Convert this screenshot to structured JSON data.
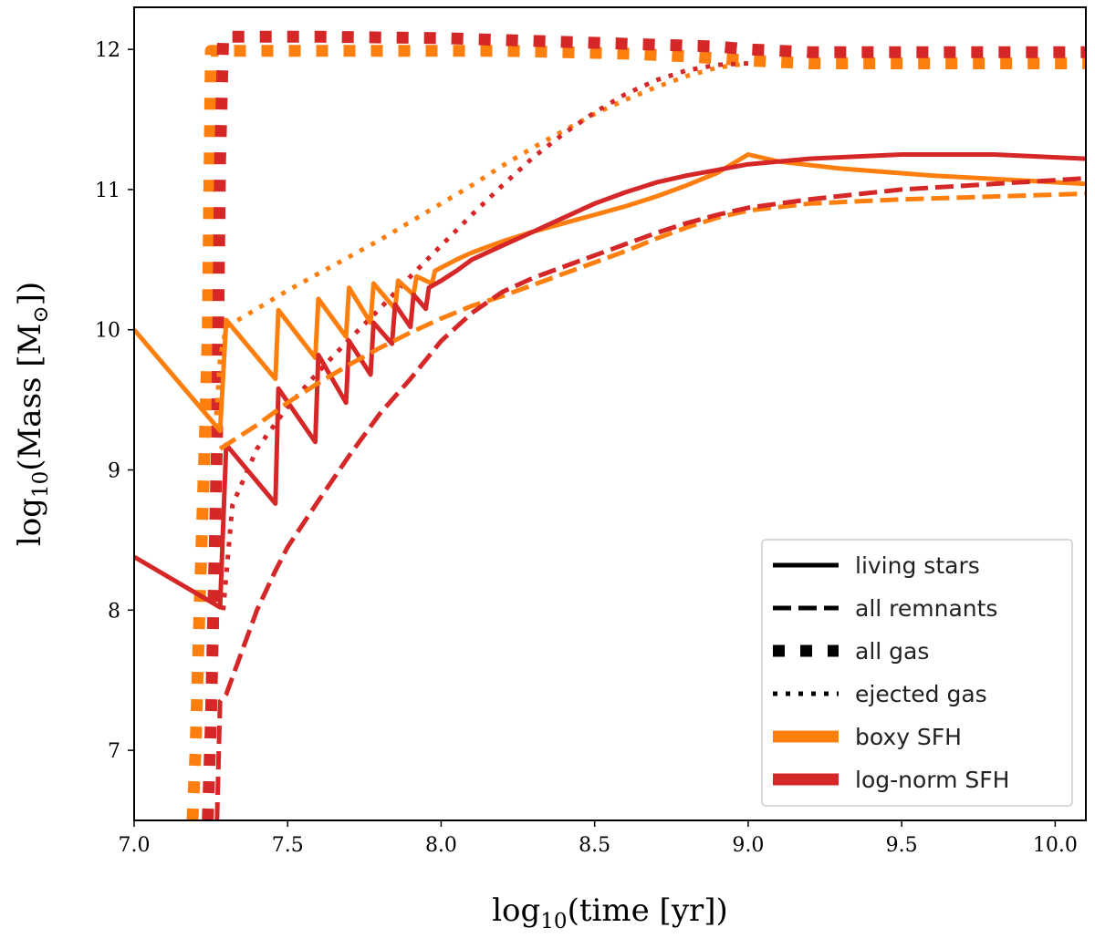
{
  "chart_data": {
    "type": "line",
    "title": "",
    "xlabel": {
      "prefix": "log",
      "sub": "10",
      "suffix": "(time [yr])"
    },
    "ylabel": {
      "prefix": "log",
      "sub": "10",
      "middle": "(Mass [M",
      "sub2": "⊙",
      "suffix": "])"
    },
    "xlim": [
      7.0,
      10.1
    ],
    "ylim": [
      6.5,
      12.3
    ],
    "xticks": [
      7.0,
      7.5,
      8.0,
      8.5,
      9.0,
      9.5,
      10.0
    ],
    "xtick_labels": [
      "7.0",
      "7.5",
      "8.0",
      "8.5",
      "9.0",
      "9.5",
      "10.0"
    ],
    "yticks": [
      7,
      8,
      9,
      10,
      11,
      12
    ],
    "ytick_labels": [
      "7",
      "8",
      "9",
      "10",
      "11",
      "12"
    ],
    "grid": false,
    "colors": {
      "boxy": "#ff7f0e",
      "lognorm": "#d62728",
      "axis": "#000000",
      "legend_key": "#000000"
    },
    "legend": {
      "position": "lower-right",
      "entries": [
        {
          "label": "living stars",
          "style": "solid"
        },
        {
          "label": "all remnants",
          "style": "dashed"
        },
        {
          "label": "all gas",
          "style": "square-dotted"
        },
        {
          "label": "ejected gas",
          "style": "dotted"
        },
        {
          "label": "boxy SFH",
          "style": "color-boxy"
        },
        {
          "label": "log-norm SFH",
          "style": "color-lognorm"
        }
      ]
    },
    "series": [
      {
        "name": "boxy SFH - all gas",
        "sfh": "boxy",
        "style": "square-dotted",
        "x": [
          7.19,
          7.2,
          7.21,
          7.22,
          7.23,
          7.24,
          7.245,
          7.25,
          7.3,
          7.6,
          7.9,
          8.2,
          8.4,
          8.6,
          8.8,
          9.0,
          9.2,
          9.5,
          10.1
        ],
        "y": [
          6.5,
          7.0,
          7.8,
          8.5,
          9.2,
          10.0,
          11.0,
          11.99,
          11.99,
          11.99,
          11.99,
          11.99,
          11.98,
          11.97,
          11.95,
          11.92,
          11.9,
          11.9,
          11.9
        ]
      },
      {
        "name": "log-norm SFH - all gas",
        "sfh": "lognorm",
        "style": "square-dotted",
        "x": [
          7.24,
          7.25,
          7.26,
          7.27,
          7.275,
          7.28,
          7.29,
          7.6,
          8.0,
          8.3,
          8.6,
          8.9,
          9.0,
          9.2,
          9.5,
          10.1
        ],
        "y": [
          6.5,
          7.2,
          8.2,
          9.2,
          10.2,
          11.2,
          12.09,
          12.09,
          12.08,
          12.06,
          12.04,
          12.02,
          12.0,
          11.98,
          11.98,
          11.98
        ]
      },
      {
        "name": "boxy SFH - ejected gas",
        "sfh": "boxy",
        "style": "dotted",
        "x": [
          7.265,
          7.28,
          7.3,
          7.4,
          7.5,
          7.6,
          7.7,
          7.8,
          7.9,
          8.0,
          8.1,
          8.2,
          8.3,
          8.4,
          8.5,
          8.6,
          8.7,
          8.8,
          8.9,
          9.0
        ],
        "y": [
          9.3,
          9.8,
          10.02,
          10.15,
          10.28,
          10.4,
          10.52,
          10.64,
          10.77,
          10.9,
          11.03,
          11.17,
          11.3,
          11.42,
          11.54,
          11.64,
          11.73,
          11.81,
          11.87,
          11.9
        ]
      },
      {
        "name": "log-norm SFH - ejected gas",
        "sfh": "lognorm",
        "style": "dotted",
        "x": [
          7.29,
          7.32,
          7.4,
          7.5,
          7.6,
          7.7,
          7.8,
          7.9,
          8.0,
          8.1,
          8.2,
          8.3,
          8.4,
          8.5,
          8.6,
          8.7,
          8.8,
          8.9,
          9.0
        ],
        "y": [
          8.0,
          8.75,
          9.15,
          9.45,
          9.7,
          9.93,
          10.15,
          10.38,
          10.6,
          10.82,
          11.03,
          11.23,
          11.4,
          11.55,
          11.68,
          11.78,
          11.85,
          11.89,
          11.9
        ]
      },
      {
        "name": "boxy SFH - living stars",
        "sfh": "boxy",
        "style": "solid",
        "x": [
          7.0,
          7.28,
          7.3,
          7.46,
          7.47,
          7.59,
          7.6,
          7.69,
          7.7,
          7.77,
          7.78,
          7.85,
          7.86,
          7.91,
          7.92,
          7.97,
          7.98,
          8.05,
          8.1,
          8.2,
          8.3,
          8.4,
          8.5,
          8.6,
          8.7,
          8.8,
          8.9,
          9.0,
          9.1,
          9.3,
          9.6,
          10.1
        ],
        "y": [
          10.0,
          9.28,
          10.07,
          9.65,
          10.14,
          9.8,
          10.22,
          9.95,
          10.3,
          10.05,
          10.33,
          10.15,
          10.35,
          10.25,
          10.38,
          10.33,
          10.42,
          10.5,
          10.55,
          10.63,
          10.7,
          10.76,
          10.82,
          10.88,
          10.95,
          11.03,
          11.12,
          11.25,
          11.2,
          11.15,
          11.1,
          11.04
        ]
      },
      {
        "name": "log-norm SFH - living stars",
        "sfh": "lognorm",
        "style": "solid",
        "x": [
          7.0,
          7.28,
          7.3,
          7.46,
          7.47,
          7.59,
          7.6,
          7.69,
          7.7,
          7.77,
          7.78,
          7.84,
          7.85,
          7.9,
          7.91,
          7.95,
          7.96,
          8.0,
          8.05,
          8.1,
          8.2,
          8.3,
          8.4,
          8.5,
          8.6,
          8.7,
          8.8,
          8.9,
          9.0,
          9.2,
          9.5,
          9.8,
          10.1
        ],
        "y": [
          8.38,
          8.02,
          9.18,
          8.76,
          9.58,
          9.2,
          9.82,
          9.48,
          9.92,
          9.68,
          10.05,
          9.9,
          10.18,
          10.02,
          10.25,
          10.15,
          10.3,
          10.35,
          10.42,
          10.5,
          10.6,
          10.7,
          10.8,
          10.9,
          10.98,
          11.05,
          11.1,
          11.14,
          11.18,
          11.22,
          11.25,
          11.25,
          11.22
        ]
      },
      {
        "name": "boxy SFH - all remnants",
        "sfh": "boxy",
        "style": "dashed",
        "x": [
          7.28,
          7.4,
          7.5,
          7.6,
          7.7,
          7.8,
          7.9,
          8.0,
          8.1,
          8.2,
          8.3,
          8.4,
          8.5,
          8.6,
          8.7,
          8.8,
          8.9,
          9.0,
          9.2,
          9.5,
          10.1
        ],
        "y": [
          9.15,
          9.32,
          9.48,
          9.62,
          9.75,
          9.87,
          9.98,
          10.08,
          10.17,
          10.24,
          10.32,
          10.4,
          10.48,
          10.56,
          10.65,
          10.73,
          10.8,
          10.85,
          10.9,
          10.93,
          10.97
        ]
      },
      {
        "name": "log-norm SFH - all remnants",
        "sfh": "lognorm",
        "style": "dashed",
        "x": [
          7.27,
          7.28,
          7.3,
          7.35,
          7.4,
          7.46,
          7.5,
          7.6,
          7.7,
          7.8,
          7.9,
          8.0,
          8.1,
          8.2,
          8.3,
          8.4,
          8.5,
          8.6,
          8.7,
          8.8,
          8.9,
          9.0,
          9.2,
          9.5,
          10.1
        ],
        "y": [
          6.5,
          7.35,
          7.4,
          7.7,
          8.0,
          8.28,
          8.45,
          8.78,
          9.1,
          9.4,
          9.65,
          9.92,
          10.12,
          10.27,
          10.37,
          10.45,
          10.53,
          10.61,
          10.69,
          10.76,
          10.82,
          10.87,
          10.93,
          11.0,
          11.08
        ]
      }
    ]
  }
}
